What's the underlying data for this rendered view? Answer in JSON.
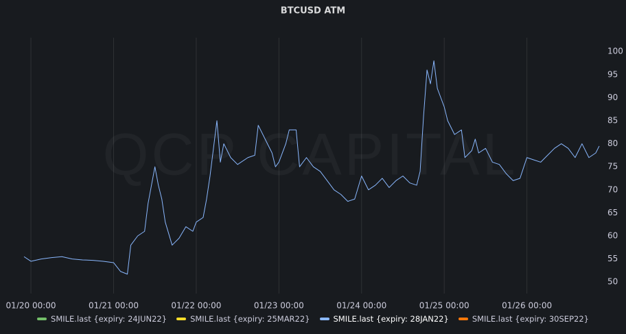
{
  "chart_data": {
    "type": "line",
    "title": "BTCUSD ATM",
    "watermark": "QCP CAPITAL",
    "x": [
      "01/19 22:00",
      "01/20 00:00",
      "01/20 03:00",
      "01/20 06:00",
      "01/20 09:00",
      "01/20 12:00",
      "01/20 15:00",
      "01/20 18:00",
      "01/20 21:00",
      "01/21 00:00",
      "01/21 02:00",
      "01/21 04:00",
      "01/21 05:00",
      "01/21 07:00",
      "01/21 09:00",
      "01/21 10:00",
      "01/21 11:00",
      "01/21 12:00",
      "01/21 13:00",
      "01/21 14:00",
      "01/21 15:00",
      "01/21 17:00",
      "01/21 19:00",
      "01/21 21:00",
      "01/21 23:00",
      "01/22 00:00",
      "01/22 02:00",
      "01/22 03:00",
      "01/22 04:00",
      "01/22 06:00",
      "01/22 07:00",
      "01/22 08:00",
      "01/22 10:00",
      "01/22 12:00",
      "01/22 15:00",
      "01/22 17:00",
      "01/22 18:00",
      "01/22 20:00",
      "01/22 22:00",
      "01/22 23:00",
      "01/23 00:00",
      "01/23 02:00",
      "01/23 03:00",
      "01/23 05:00",
      "01/23 06:00",
      "01/23 08:00",
      "01/23 10:00",
      "01/23 12:00",
      "01/23 14:00",
      "01/23 16:00",
      "01/23 18:00",
      "01/23 20:00",
      "01/23 22:00",
      "01/24 00:00",
      "01/24 02:00",
      "01/24 04:00",
      "01/24 06:00",
      "01/24 08:00",
      "01/24 10:00",
      "01/24 12:00",
      "01/24 14:00",
      "01/24 16:00",
      "01/24 17:00",
      "01/24 18:00",
      "01/24 19:00",
      "01/24 20:00",
      "01/24 21:00",
      "01/24 22:00",
      "01/24 23:00",
      "01/25 00:00",
      "01/25 01:00",
      "01/25 03:00",
      "01/25 05:00",
      "01/25 06:00",
      "01/25 08:00",
      "01/25 09:00",
      "01/25 10:00",
      "01/25 12:00",
      "01/25 14:00",
      "01/25 16:00",
      "01/25 18:00",
      "01/25 20:00",
      "01/25 22:00",
      "01/26 00:00",
      "01/26 02:00",
      "01/26 04:00",
      "01/26 06:00",
      "01/26 08:00",
      "01/26 10:00",
      "01/26 12:00",
      "01/26 14:00",
      "01/26 16:00",
      "01/26 18:00",
      "01/26 20:00",
      "01/26 21:00"
    ],
    "series": [
      {
        "name": "SMILE.last {expiry: 24JUN22}",
        "color": "#73bf69",
        "values": [
          null,
          null,
          null,
          null,
          null,
          null,
          null,
          null,
          null,
          null,
          null,
          null,
          null,
          null,
          null,
          null,
          null,
          null,
          null,
          null,
          null,
          null,
          null,
          null,
          null,
          null,
          null,
          null,
          null,
          null,
          null,
          null,
          null,
          null,
          null,
          null,
          null,
          null,
          null,
          null,
          null,
          null,
          null,
          null,
          null,
          null,
          null,
          null,
          null,
          null,
          null,
          null,
          null,
          null,
          null,
          null,
          null,
          null,
          null,
          null,
          null,
          null,
          null,
          null,
          null,
          null,
          null,
          null,
          null,
          null,
          null,
          null,
          null,
          null,
          null,
          null,
          null,
          null,
          null,
          null,
          null,
          null,
          null,
          null,
          null,
          null,
          null,
          null,
          null,
          null,
          null,
          null,
          null,
          null,
          null
        ]
      },
      {
        "name": "SMILE.last {expiry: 25MAR22}",
        "color": "#fade2a",
        "values": [
          null,
          null,
          null,
          null,
          null,
          null,
          null,
          null,
          null,
          null,
          null,
          null,
          null,
          null,
          null,
          null,
          null,
          null,
          null,
          null,
          null,
          null,
          null,
          null,
          null,
          null,
          null,
          null,
          null,
          null,
          null,
          null,
          null,
          null,
          null,
          null,
          null,
          null,
          null,
          null,
          null,
          null,
          null,
          null,
          null,
          null,
          null,
          null,
          null,
          null,
          null,
          null,
          null,
          null,
          null,
          null,
          null,
          null,
          null,
          null,
          null,
          null,
          null,
          null,
          null,
          null,
          null,
          null,
          null,
          null,
          null,
          null,
          null,
          null,
          null,
          null,
          null,
          null,
          null,
          null,
          null,
          null,
          null,
          null,
          null,
          null,
          null,
          null,
          null,
          null,
          null,
          null,
          null,
          null,
          null
        ]
      },
      {
        "name": "SMILE.last {expiry: 28JAN22}",
        "color": "#8ab8ff",
        "values": [
          55.5,
          54.5,
          55,
          55.3,
          55.5,
          55,
          54.8,
          54.7,
          54.5,
          54.2,
          52.3,
          51.7,
          58,
          60,
          61,
          67,
          71,
          75,
          71,
          68,
          63,
          58,
          59.5,
          62,
          61,
          63,
          64,
          68,
          73,
          85,
          76,
          80,
          77,
          75.5,
          77,
          77.5,
          84,
          81,
          78,
          75,
          76,
          80,
          83,
          83,
          75,
          77,
          75,
          74,
          72,
          70,
          69,
          67.5,
          68,
          73,
          70,
          71,
          72.5,
          70.5,
          72,
          73,
          71.5,
          71,
          74,
          86,
          96,
          93,
          98,
          92,
          90,
          88,
          85,
          82,
          83,
          77,
          78.5,
          81,
          78,
          79,
          76,
          75.5,
          73.5,
          72,
          72.5,
          77,
          76.5,
          76,
          77.5,
          79,
          80,
          79,
          77,
          80,
          77,
          78,
          79.5
        ]
      },
      {
        "name": "SMILE.last {expiry: 30SEP22}",
        "color": "#ff780a",
        "values": [
          null,
          null,
          null,
          null,
          null,
          null,
          null,
          null,
          null,
          null,
          null,
          null,
          null,
          null,
          null,
          null,
          null,
          null,
          null,
          null,
          null,
          null,
          null,
          null,
          null,
          null,
          null,
          null,
          null,
          null,
          null,
          null,
          null,
          null,
          null,
          null,
          null,
          null,
          null,
          null,
          null,
          null,
          null,
          null,
          null,
          null,
          null,
          null,
          null,
          null,
          null,
          null,
          null,
          null,
          null,
          null,
          null,
          null,
          null,
          null,
          null,
          null,
          null,
          null,
          null,
          null,
          null,
          null,
          null,
          null,
          null,
          null,
          null,
          null,
          null,
          null,
          null,
          null,
          null,
          null,
          null,
          null,
          null,
          null,
          null,
          null,
          null,
          null,
          null,
          null,
          null,
          null,
          null,
          null,
          null
        ]
      }
    ],
    "xlim": [
      "01/19 21:00",
      "01/26 22:00"
    ],
    "xticks": [
      "01/20 00:00",
      "01/21 00:00",
      "01/22 00:00",
      "01/23 00:00",
      "01/24 00:00",
      "01/25 00:00",
      "01/26 00:00"
    ],
    "ylim": [
      47.5,
      103
    ],
    "yticks": [
      50,
      55,
      60,
      65,
      70,
      75,
      80,
      85,
      90,
      95,
      100
    ],
    "grid": true
  }
}
